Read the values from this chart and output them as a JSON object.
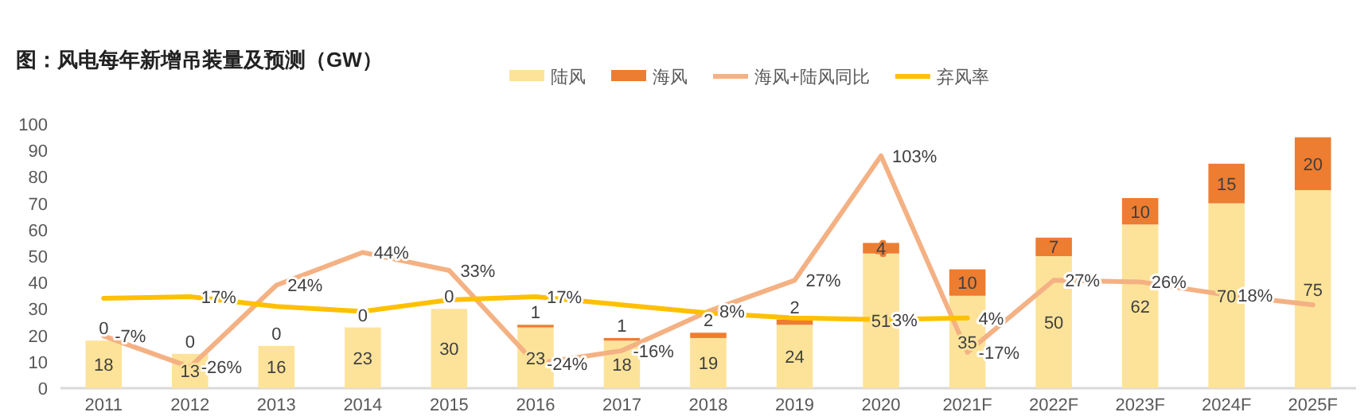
{
  "chart_data": {
    "type": "bar",
    "stacked": true,
    "title": "图：风电每年新增吊装量及预测（GW）",
    "categories": [
      "2011",
      "2012",
      "2013",
      "2014",
      "2015",
      "2016",
      "2017",
      "2018",
      "2019",
      "2020",
      "2021F",
      "2022F",
      "2023F",
      "2024F",
      "2025F"
    ],
    "series": [
      {
        "name": "陆风",
        "color": "#fde39a",
        "values": [
          18,
          13,
          16,
          23,
          30,
          23,
          18,
          19,
          24,
          51,
          35,
          50,
          62,
          70,
          75
        ]
      },
      {
        "name": "海风",
        "color": "#ed7d31",
        "values": [
          0,
          0,
          0,
          0,
          0,
          1,
          1,
          2,
          2,
          4,
          10,
          7,
          10,
          15,
          20
        ]
      },
      {
        "name": "海风+陆风同比",
        "type": "line",
        "axis": "y2",
        "color": "#f4b183",
        "values": [
          -7,
          -26,
          24,
          44,
          33,
          -24,
          -16,
          8,
          27,
          103,
          -17,
          27,
          26,
          18,
          12
        ],
        "value_labels": [
          "-7%",
          "-26%",
          "24%",
          "44%",
          "33%",
          "-24%",
          "-16%",
          "8%",
          "27%",
          "103%",
          "-17%",
          "27%",
          "26%",
          "18%",
          null
        ]
      },
      {
        "name": "弃风率",
        "type": "line",
        "axis": "y2",
        "color": "#ffc000",
        "values": [
          16,
          17,
          11,
          8,
          15,
          17,
          12,
          7,
          4,
          3,
          4,
          null,
          null,
          null,
          null
        ],
        "value_labels": [
          null,
          "17%",
          null,
          null,
          null,
          "17%",
          null,
          null,
          null,
          "3%",
          "4%",
          null,
          null,
          null,
          null
        ]
      }
    ],
    "ylim": [
      0,
      100
    ],
    "yticks": [
      0,
      10,
      20,
      30,
      40,
      50,
      60,
      70,
      80,
      90,
      100
    ],
    "data_labels": true,
    "legend": "top right",
    "grid": false
  }
}
